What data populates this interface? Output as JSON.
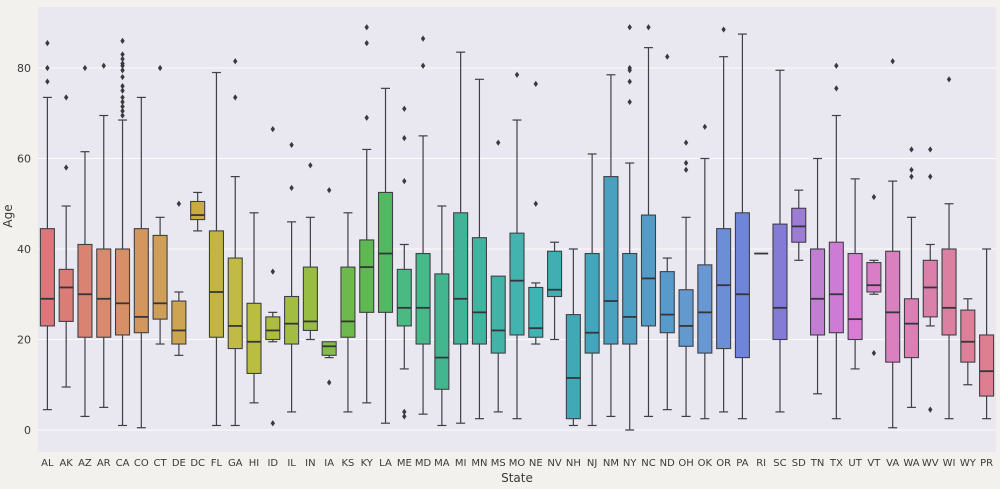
{
  "chart_data": {
    "type": "box",
    "title": "",
    "xlabel": "State",
    "ylabel": "Age",
    "ylim": [
      -5,
      93.5
    ],
    "yticks": [
      0,
      20,
      40,
      60,
      80
    ],
    "grid": "horizontal white gridlines on light lavender axes (seaborn darkgrid style)",
    "legend": "none",
    "palette": "rainbow hue sweep, one color per state (seaborn husl-like)",
    "style": {
      "figure_background": "#f2f1ed",
      "axes_background": "#e9e8f0",
      "gridline_color": "#ffffff",
      "box_edge_color": "#3f4045",
      "median_color": "#35363a",
      "flier_color": "#3a3a3e",
      "text_color": "#3a3a3a",
      "palette_anchors": [
        [
          0,
          -3,
          58,
          66
        ],
        [
          2,
          10,
          58,
          65
        ],
        [
          4,
          22,
          58,
          62
        ],
        [
          6,
          35,
          55,
          58
        ],
        [
          8,
          46,
          55,
          53
        ],
        [
          11,
          62,
          48,
          50
        ],
        [
          14,
          78,
          48,
          50
        ],
        [
          17,
          112,
          42,
          52
        ],
        [
          19,
          150,
          45,
          51
        ],
        [
          22,
          165,
          46,
          48
        ],
        [
          25,
          178,
          46,
          48
        ],
        [
          28,
          186,
          48,
          48
        ],
        [
          30,
          196,
          48,
          52
        ],
        [
          33,
          205,
          52,
          57
        ],
        [
          35,
          214,
          55,
          62
        ],
        [
          37,
          227,
          58,
          64
        ],
        [
          39,
          245,
          52,
          66
        ],
        [
          40,
          262,
          50,
          66
        ],
        [
          41,
          288,
          48,
          66
        ],
        [
          42,
          295,
          52,
          66
        ],
        [
          44,
          312,
          55,
          67
        ],
        [
          46,
          325,
          56,
          68
        ],
        [
          48,
          338,
          56,
          68
        ],
        [
          50,
          348,
          58,
          68
        ]
      ]
    },
    "categories": [
      "AL",
      "AK",
      "AZ",
      "AR",
      "CA",
      "CO",
      "CT",
      "DE",
      "DC",
      "FL",
      "GA",
      "HI",
      "ID",
      "IL",
      "IN",
      "IA",
      "KS",
      "KY",
      "LA",
      "ME",
      "MD",
      "MA",
      "MI",
      "MN",
      "MS",
      "MO",
      "NE",
      "NV",
      "NH",
      "NJ",
      "NM",
      "NY",
      "NC",
      "ND",
      "OH",
      "OK",
      "OR",
      "PA",
      "RI",
      "SC",
      "SD",
      "TN",
      "TX",
      "UT",
      "VT",
      "VA",
      "WA",
      "WV",
      "WI",
      "WY",
      "PR"
    ],
    "series": [
      {
        "label": "AL",
        "whislo": 4.5,
        "q1": 23,
        "med": 29,
        "q3": 44.5,
        "whishi": 73.5,
        "fliers": [
          85.5,
          80,
          77
        ]
      },
      {
        "label": "AK",
        "whislo": 9.5,
        "q1": 24,
        "med": 31.5,
        "q3": 35.5,
        "whishi": 49.5,
        "fliers": [
          73.5,
          58
        ]
      },
      {
        "label": "AZ",
        "whislo": 3,
        "q1": 20.5,
        "med": 30,
        "q3": 41,
        "whishi": 61.5,
        "fliers": [
          80
        ]
      },
      {
        "label": "AR",
        "whislo": 5,
        "q1": 20.5,
        "med": 29,
        "q3": 40,
        "whishi": 69.5,
        "fliers": [
          80.5
        ]
      },
      {
        "label": "CA",
        "whislo": 1,
        "q1": 21,
        "med": 28,
        "q3": 40,
        "whishi": 68.5,
        "fliers": [
          86,
          83,
          82,
          81,
          80.5,
          79.5,
          78,
          76,
          75,
          73.5,
          72.5,
          71.5,
          70.5,
          69.5
        ]
      },
      {
        "label": "CO",
        "whislo": 0.5,
        "q1": 21.5,
        "med": 25,
        "q3": 44.5,
        "whishi": 73.5,
        "fliers": []
      },
      {
        "label": "CT",
        "whislo": 19,
        "q1": 24.5,
        "med": 28,
        "q3": 43,
        "whishi": 47,
        "fliers": [
          80
        ]
      },
      {
        "label": "DE",
        "whislo": 16.5,
        "q1": 19,
        "med": 22,
        "q3": 28.5,
        "whishi": 30.5,
        "fliers": [
          50
        ]
      },
      {
        "label": "DC",
        "whislo": 44,
        "q1": 46.5,
        "med": 47.5,
        "q3": 50.5,
        "whishi": 52.5,
        "fliers": []
      },
      {
        "label": "FL",
        "whislo": 1,
        "q1": 20.5,
        "med": 30.5,
        "q3": 44,
        "whishi": 79,
        "fliers": []
      },
      {
        "label": "GA",
        "whislo": 1,
        "q1": 18,
        "med": 23,
        "q3": 38,
        "whishi": 56,
        "fliers": [
          81.5,
          73.5
        ]
      },
      {
        "label": "HI",
        "whislo": 6,
        "q1": 12.5,
        "med": 19.5,
        "q3": 28,
        "whishi": 48,
        "fliers": []
      },
      {
        "label": "ID",
        "whislo": 19.5,
        "q1": 20,
        "med": 22,
        "q3": 25,
        "whishi": 26,
        "fliers": [
          66.5,
          35,
          1.5
        ]
      },
      {
        "label": "IL",
        "whislo": 4,
        "q1": 19,
        "med": 23.5,
        "q3": 29.5,
        "whishi": 46,
        "fliers": [
          63,
          53.5
        ]
      },
      {
        "label": "IN",
        "whislo": 20,
        "q1": 22,
        "med": 24,
        "q3": 36,
        "whishi": 47,
        "fliers": [
          58.5
        ]
      },
      {
        "label": "IA",
        "whislo": 16,
        "q1": 16.5,
        "med": 18.5,
        "q3": 19.5,
        "whishi": 19.5,
        "fliers": [
          53,
          10.5
        ]
      },
      {
        "label": "KS",
        "whislo": 4,
        "q1": 20.5,
        "med": 24,
        "q3": 36,
        "whishi": 48,
        "fliers": []
      },
      {
        "label": "KY",
        "whislo": 6,
        "q1": 26,
        "med": 36,
        "q3": 42,
        "whishi": 62,
        "fliers": [
          89,
          85.5,
          69
        ]
      },
      {
        "label": "LA",
        "whislo": 1.5,
        "q1": 26,
        "med": 39,
        "q3": 52.5,
        "whishi": 75.5,
        "fliers": []
      },
      {
        "label": "ME",
        "whislo": 13.5,
        "q1": 23,
        "med": 27,
        "q3": 35.5,
        "whishi": 41,
        "fliers": [
          71,
          64.5,
          55,
          4,
          3
        ]
      },
      {
        "label": "MD",
        "whislo": 3.5,
        "q1": 19,
        "med": 27,
        "q3": 39,
        "whishi": 65,
        "fliers": [
          86.5,
          80.5
        ]
      },
      {
        "label": "MA",
        "whislo": 1,
        "q1": 9,
        "med": 16,
        "q3": 34.5,
        "whishi": 49.5,
        "fliers": []
      },
      {
        "label": "MI",
        "whislo": 1.5,
        "q1": 19,
        "med": 29,
        "q3": 48,
        "whishi": 83.5,
        "fliers": []
      },
      {
        "label": "MN",
        "whislo": 2.5,
        "q1": 19,
        "med": 26,
        "q3": 42.5,
        "whishi": 77.5,
        "fliers": []
      },
      {
        "label": "MS",
        "whislo": 4,
        "q1": 17,
        "med": 22,
        "q3": 34,
        "whishi": 34,
        "fliers": [
          63.5
        ]
      },
      {
        "label": "MO",
        "whislo": 2.5,
        "q1": 21,
        "med": 33,
        "q3": 43.5,
        "whishi": 68.5,
        "fliers": [
          78.5
        ]
      },
      {
        "label": "NE",
        "whislo": 19,
        "q1": 20.5,
        "med": 22.5,
        "q3": 31.5,
        "whishi": 32.5,
        "fliers": [
          76.5,
          50
        ]
      },
      {
        "label": "NV",
        "whislo": 20,
        "q1": 29.5,
        "med": 31,
        "q3": 39.5,
        "whishi": 41.5,
        "fliers": []
      },
      {
        "label": "NH",
        "whislo": 1,
        "q1": 2.5,
        "med": 11.5,
        "q3": 25.5,
        "whishi": 40,
        "fliers": []
      },
      {
        "label": "NJ",
        "whislo": 1,
        "q1": 17,
        "med": 21.5,
        "q3": 39,
        "whishi": 61,
        "fliers": []
      },
      {
        "label": "NM",
        "whislo": 3,
        "q1": 19,
        "med": 28.5,
        "q3": 56,
        "whishi": 78.5,
        "fliers": []
      },
      {
        "label": "NY",
        "whislo": 0,
        "q1": 19,
        "med": 25,
        "q3": 39,
        "whishi": 59,
        "fliers": [
          89,
          80,
          79.5,
          77,
          72.5
        ]
      },
      {
        "label": "NC",
        "whislo": 3,
        "q1": 23,
        "med": 33.5,
        "q3": 47.5,
        "whishi": 84.5,
        "fliers": [
          89
        ]
      },
      {
        "label": "ND",
        "whislo": 4.5,
        "q1": 21.5,
        "med": 25.5,
        "q3": 35,
        "whishi": 38,
        "fliers": [
          82.5
        ]
      },
      {
        "label": "OH",
        "whislo": 3,
        "q1": 18.5,
        "med": 23,
        "q3": 31,
        "whishi": 47,
        "fliers": [
          63.5,
          59,
          57.5
        ]
      },
      {
        "label": "OK",
        "whislo": 2.5,
        "q1": 17,
        "med": 26,
        "q3": 36.5,
        "whishi": 60,
        "fliers": [
          67
        ]
      },
      {
        "label": "OR",
        "whislo": 4,
        "q1": 18,
        "med": 32,
        "q3": 44.5,
        "whishi": 82.5,
        "fliers": [
          88.5
        ]
      },
      {
        "label": "PA",
        "whislo": 2.5,
        "q1": 16,
        "med": 30,
        "q3": 48,
        "whishi": 87.5,
        "fliers": []
      },
      {
        "label": "RI",
        "whislo": 39,
        "q1": 39,
        "med": 39,
        "q3": 39,
        "whishi": 39,
        "fliers": []
      },
      {
        "label": "SC",
        "whislo": 4,
        "q1": 20,
        "med": 27,
        "q3": 45.5,
        "whishi": 79.5,
        "fliers": []
      },
      {
        "label": "SD",
        "whislo": 37.5,
        "q1": 41.5,
        "med": 45,
        "q3": 49,
        "whishi": 53,
        "fliers": []
      },
      {
        "label": "TN",
        "whislo": 8,
        "q1": 21,
        "med": 29,
        "q3": 40,
        "whishi": 60,
        "fliers": []
      },
      {
        "label": "TX",
        "whislo": 2.5,
        "q1": 21.5,
        "med": 30,
        "q3": 41.5,
        "whishi": 69.5,
        "fliers": [
          80.5,
          75.5
        ]
      },
      {
        "label": "UT",
        "whislo": 13.5,
        "q1": 20,
        "med": 24.5,
        "q3": 39,
        "whishi": 55.5,
        "fliers": []
      },
      {
        "label": "VT",
        "whislo": 30,
        "q1": 30.5,
        "med": 32,
        "q3": 37,
        "whishi": 37.5,
        "fliers": [
          51.5,
          17
        ]
      },
      {
        "label": "VA",
        "whislo": 0.5,
        "q1": 15,
        "med": 26,
        "q3": 39.5,
        "whishi": 55,
        "fliers": [
          81.5
        ]
      },
      {
        "label": "WA",
        "whislo": 5,
        "q1": 16,
        "med": 23.5,
        "q3": 29,
        "whishi": 47,
        "fliers": [
          62,
          57.5,
          56
        ]
      },
      {
        "label": "WV",
        "whislo": 23,
        "q1": 25,
        "med": 31.5,
        "q3": 37.5,
        "whishi": 41,
        "fliers": [
          62,
          56,
          4.5
        ]
      },
      {
        "label": "WI",
        "whislo": 2.5,
        "q1": 21,
        "med": 27,
        "q3": 40,
        "whishi": 50,
        "fliers": [
          77.5
        ]
      },
      {
        "label": "WY",
        "whislo": 10,
        "q1": 15,
        "med": 19.5,
        "q3": 26.5,
        "whishi": 29,
        "fliers": []
      },
      {
        "label": "PR",
        "whislo": 2.5,
        "q1": 7.5,
        "med": 13,
        "q3": 21,
        "whishi": 40,
        "fliers": []
      }
    ]
  }
}
